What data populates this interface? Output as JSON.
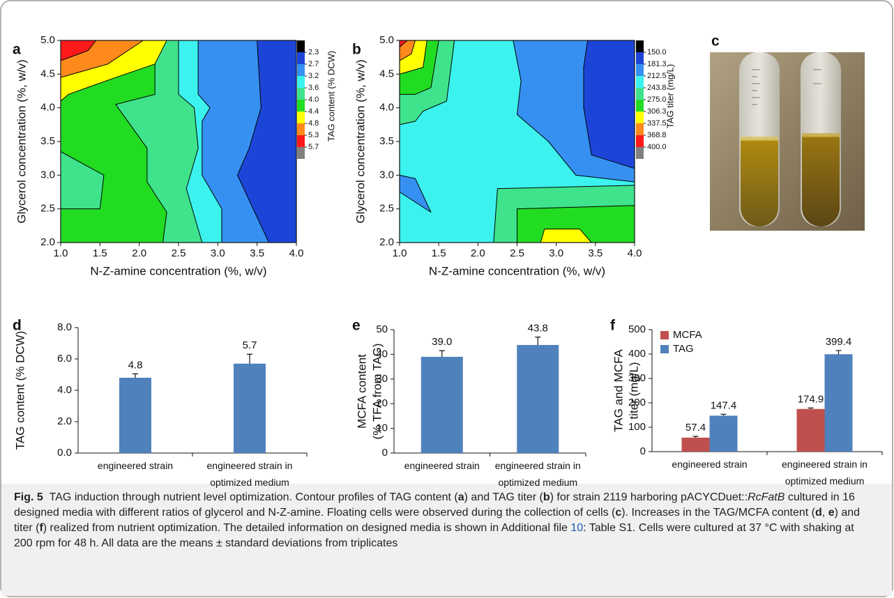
{
  "panel_labels": [
    "a",
    "b",
    "c",
    "d",
    "e",
    "f"
  ],
  "chart_data": [
    {
      "type": "contour",
      "xlabel": "N-Z-amine concentration (%, w/v)",
      "ylabel": [
        "Glycerol concentration (%, w/v)"
      ],
      "xlim": [
        1,
        4
      ],
      "ylim": [
        2,
        5
      ],
      "xticks": [
        {
          "value": 1,
          "label": "1.0"
        },
        1.5,
        {
          "value": 2,
          "label": "2.0"
        },
        2.5,
        {
          "value": 3,
          "label": "3.0"
        },
        3.5,
        {
          "value": 4,
          "label": "4.0"
        }
      ],
      "yticks": [
        {
          "value": 2,
          "label": "2.0"
        },
        2.5,
        {
          "value": 3,
          "label": "3.0"
        },
        3.5,
        {
          "value": 4,
          "label": "4.0"
        },
        4.5,
        {
          "value": 5,
          "label": "5.0"
        }
      ],
      "colorbar": {
        "label": "TAG content (% DCW)",
        "ticks": [
          2.3,
          2.7,
          3.2,
          3.6,
          {
            "value": 4,
            "label": "4.0"
          },
          4.4,
          4.8,
          5.3,
          5.7
        ],
        "colors": [
          "#000000",
          "#1c45d8",
          "#3690f2",
          "#3cf2ee",
          "#3fe38c",
          "#22dc22",
          "#ffff00",
          "#ff8a1c",
          "#ff1a1a",
          "#808080"
        ]
      }
    },
    {
      "type": "contour",
      "xlabel": "N-Z-amine concentration (%, w/v)",
      "ylabel": [
        "Glycerol concentration (%, w/v)"
      ],
      "xlim": [
        1,
        4
      ],
      "ylim": [
        2,
        5
      ],
      "xticks": [
        {
          "value": 1,
          "label": "1.0"
        },
        1.5,
        {
          "value": 2,
          "label": "2.0"
        },
        2.5,
        {
          "value": 3,
          "label": "3.0"
        },
        3.5,
        {
          "value": 4,
          "label": "4.0"
        }
      ],
      "yticks": [
        {
          "value": 2,
          "label": "2.0"
        },
        2.5,
        {
          "value": 3,
          "label": "3.0"
        },
        3.5,
        {
          "value": 4,
          "label": "4.0"
        },
        4.5,
        {
          "value": 5,
          "label": "5.0"
        }
      ],
      "colorbar": {
        "label": "TAG titer (mg/L)",
        "ticks": [
          {
            "value": 150,
            "label": "150.0"
          },
          181.3,
          212.5,
          243.8,
          {
            "value": 275,
            "label": "275.0"
          },
          306.3,
          337.5,
          368.8,
          {
            "value": 400,
            "label": "400.0"
          }
        ],
        "colors": [
          "#000000",
          "#1c45d8",
          "#3690f2",
          "#3cf2ee",
          "#3fe38c",
          "#22dc22",
          "#ffff00",
          "#ff8a1c",
          "#ff1a1a",
          "#808080"
        ]
      }
    },
    {
      "type": "bar",
      "ylabel": [
        "TAG content (% DCW)"
      ],
      "categories": [
        "engineered strain",
        "engineered strain in optimized medium"
      ],
      "values": [
        4.8,
        5.7
      ],
      "value_labels": [
        "4.8",
        "5.7"
      ],
      "errors": [
        0.25,
        0.6
      ],
      "color": "#4f81bd",
      "ylim": [
        0,
        8
      ],
      "yticks": [
        {
          "value": 0,
          "label": "0.0"
        },
        {
          "value": 2,
          "label": "2.0"
        },
        {
          "value": 4,
          "label": "4.0"
        },
        {
          "value": 6,
          "label": "6.0"
        },
        {
          "value": 8,
          "label": "8.0"
        }
      ]
    },
    {
      "type": "bar",
      "ylabel": [
        "MCFA content",
        "(% TFA from TAG)"
      ],
      "categories": [
        "engineered strain",
        "engineered strain in optimized medium"
      ],
      "values": [
        39.0,
        43.8
      ],
      "value_labels": [
        "39.0",
        "43.8"
      ],
      "errors": [
        2.5,
        3.2
      ],
      "color": "#4f81bd",
      "ylim": [
        0,
        50
      ],
      "yticks": [
        0,
        10,
        20,
        30,
        40,
        50
      ]
    },
    {
      "type": "grouped-bar",
      "ylabel": [
        "TAG and MCFA",
        "titer (mg/L)"
      ],
      "categories": [
        "engineered strain",
        "engineered strain in optimized medium"
      ],
      "series": [
        {
          "name": "MCFA",
          "color": "#c0504d",
          "values": [
            57.4,
            174.9
          ],
          "value_labels": [
            "57.4",
            "174.9"
          ],
          "errors": [
            5,
            4
          ]
        },
        {
          "name": "TAG",
          "color": "#4f81bd",
          "values": [
            147.4,
            399.4
          ],
          "value_labels": [
            "147.4",
            "399.4"
          ],
          "errors": [
            6,
            15
          ]
        }
      ],
      "legend": "upper left",
      "ylim": [
        0,
        500
      ],
      "yticks": [
        0,
        100,
        200,
        300,
        400,
        500
      ]
    }
  ],
  "caption": {
    "label": "Fig. 5",
    "parts": [
      {
        "text": "TAG induction through nutrient level optimization. Contour profiles of TAG content ("
      },
      {
        "text": "a",
        "style": "b"
      },
      {
        "text": ") and TAG titer ("
      },
      {
        "text": "b",
        "style": "b"
      },
      {
        "text": ") for strain 2119 harboring pACYCDuet::"
      },
      {
        "text": "RcFatB",
        "style": "i"
      },
      {
        "text": " cultured in 16 designed media with different ratios of glycerol and N-Z-amine. Floating cells were observed during the collection of cells ("
      },
      {
        "text": "c",
        "style": "b"
      },
      {
        "text": "). Increases in the TAG/MCFA content ("
      },
      {
        "text": "d",
        "style": "b"
      },
      {
        "text": ", "
      },
      {
        "text": "e",
        "style": "b"
      },
      {
        "text": ") and titer ("
      },
      {
        "text": "f",
        "style": "b"
      },
      {
        "text": ") realized from nutrient optimization. The detailed information on designed media is shown in Additional file "
      },
      {
        "text": "10",
        "style": "link"
      },
      {
        "text": ": Table S1. Cells were cultured at 37 °C with shaking at 200 rpm for 48 h. All data are the means ± standard deviations from triplicates"
      }
    ]
  }
}
